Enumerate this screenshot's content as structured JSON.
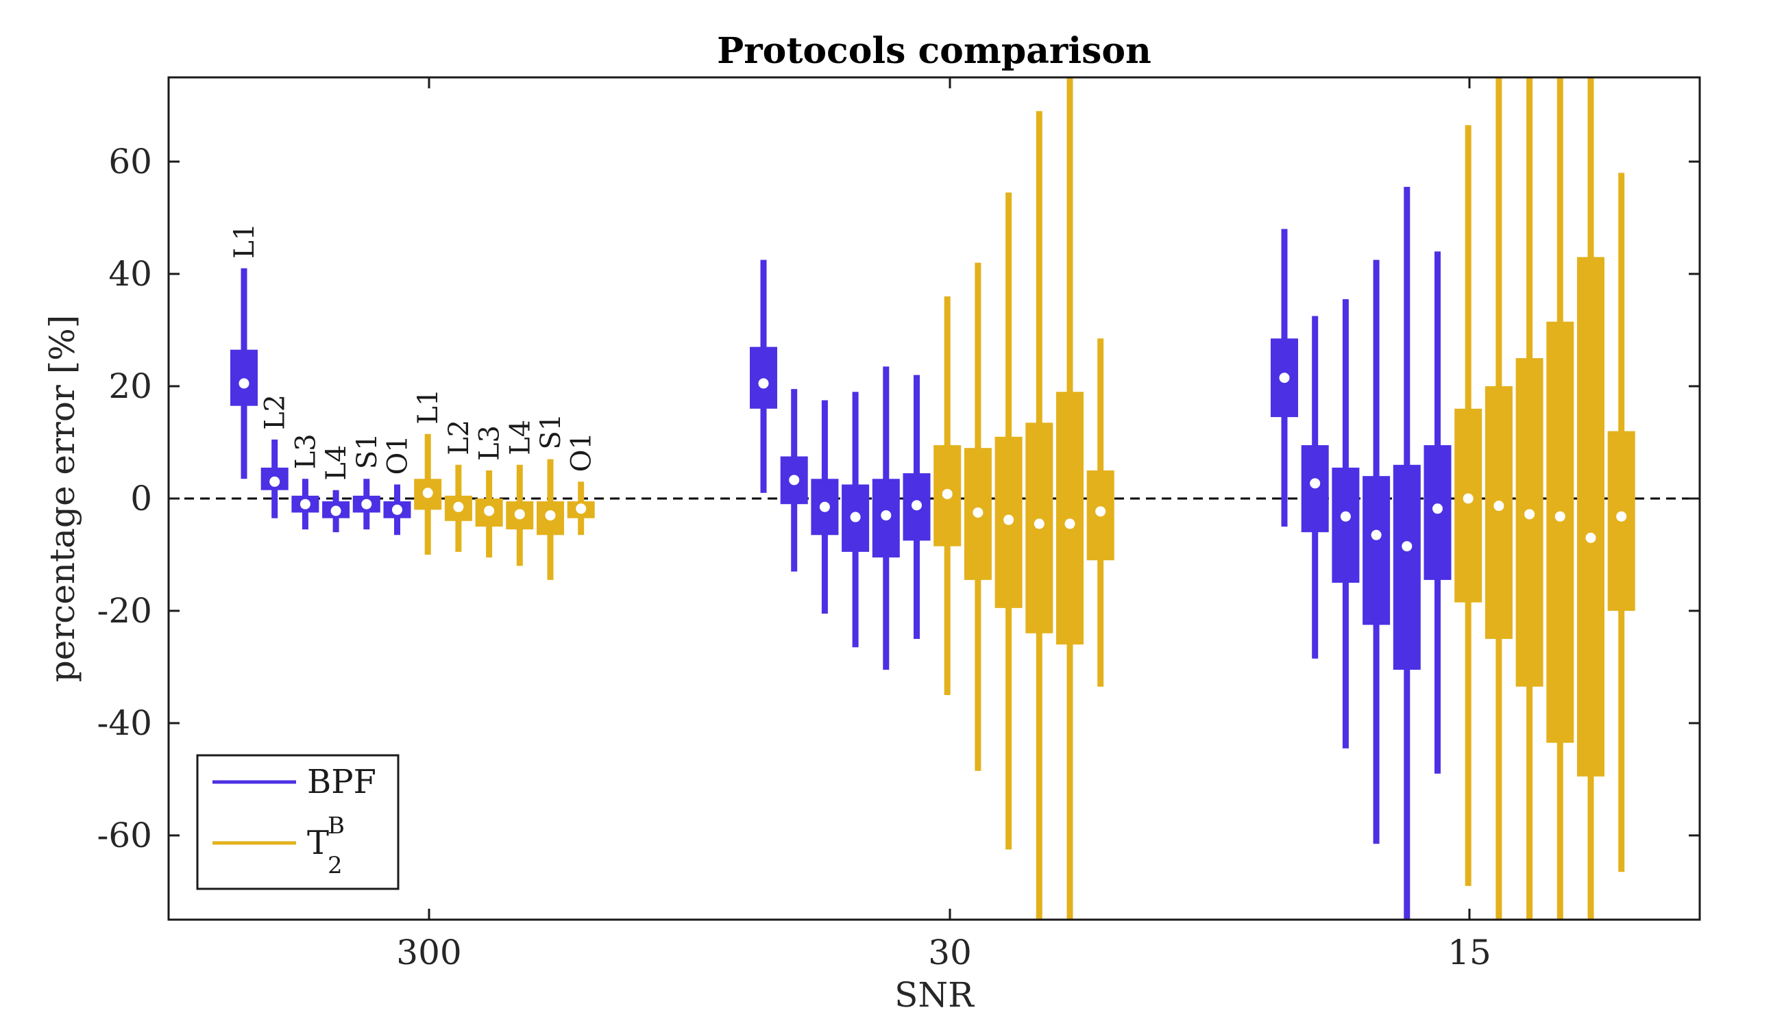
{
  "chart_data": {
    "type": "boxplot",
    "title": "Protocols comparison",
    "xlabel": "SNR",
    "ylabel": "percentage error [%]",
    "ylim": [
      -75,
      75
    ],
    "yticks": [
      -60,
      -40,
      -20,
      0,
      20,
      40,
      60
    ],
    "ytick_labels": [
      "-60",
      "-40",
      "-20",
      "0",
      "20",
      "40",
      "60"
    ],
    "xtick_labels": [
      "300",
      "30",
      "15"
    ],
    "zero_line": "dashed",
    "legend": {
      "position": "bottom-left",
      "entries": [
        {
          "label": "BPF",
          "color": "#4B30E4"
        },
        {
          "label": "T",
          "superscript": "B",
          "subscript": "2",
          "color": "#E3B11C"
        }
      ]
    },
    "colors": {
      "BPF": "#4B30E4",
      "T2B": "#E3B11C"
    },
    "protocol_labels": [
      "L1",
      "L2",
      "L3",
      "L4",
      "S1",
      "O1"
    ],
    "groups": [
      {
        "snr": "300",
        "series": [
          {
            "name": "BPF",
            "boxes": [
              {
                "label": "L1",
                "whisker_low": 3.5,
                "q1": 16.5,
                "median": 20.5,
                "q3": 26.5,
                "whisker_high": 41
              },
              {
                "label": "L2",
                "whisker_low": -3.5,
                "q1": 1.5,
                "median": 3,
                "q3": 5.5,
                "whisker_high": 10.5
              },
              {
                "label": "L3",
                "whisker_low": -5.5,
                "q1": -2.5,
                "median": -1,
                "q3": 0.5,
                "whisker_high": 3.5
              },
              {
                "label": "L4",
                "whisker_low": -6,
                "q1": -3.5,
                "median": -2.2,
                "q3": -0.5,
                "whisker_high": 1.5
              },
              {
                "label": "S1",
                "whisker_low": -5.5,
                "q1": -2.5,
                "median": -1,
                "q3": 0.5,
                "whisker_high": 3.5
              },
              {
                "label": "O1",
                "whisker_low": -6.5,
                "q1": -3.5,
                "median": -2,
                "q3": -0.5,
                "whisker_high": 2.5
              }
            ]
          },
          {
            "name": "T2B",
            "boxes": [
              {
                "label": "L1",
                "whisker_low": -10,
                "q1": -2,
                "median": 1,
                "q3": 3.5,
                "whisker_high": 11.5
              },
              {
                "label": "L2",
                "whisker_low": -9.5,
                "q1": -4,
                "median": -1.5,
                "q3": 0.5,
                "whisker_high": 6
              },
              {
                "label": "L3",
                "whisker_low": -10.5,
                "q1": -5,
                "median": -2.2,
                "q3": 0,
                "whisker_high": 5
              },
              {
                "label": "L4",
                "whisker_low": -12,
                "q1": -5.5,
                "median": -2.8,
                "q3": -0.5,
                "whisker_high": 6
              },
              {
                "label": "S1",
                "whisker_low": -14.5,
                "q1": -6.5,
                "median": -3,
                "q3": -0.5,
                "whisker_high": 7
              },
              {
                "label": "O1",
                "whisker_low": -6.5,
                "q1": -3.5,
                "median": -1.8,
                "q3": -0.5,
                "whisker_high": 3
              }
            ]
          }
        ]
      },
      {
        "snr": "30",
        "series": [
          {
            "name": "BPF",
            "boxes": [
              {
                "label": "L1",
                "whisker_low": 1,
                "q1": 16,
                "median": 20.5,
                "q3": 27,
                "whisker_high": 42.5
              },
              {
                "label": "L2",
                "whisker_low": -13,
                "q1": -1,
                "median": 3.3,
                "q3": 7.5,
                "whisker_high": 19.5
              },
              {
                "label": "L3",
                "whisker_low": -20.5,
                "q1": -6.5,
                "median": -1.5,
                "q3": 3.5,
                "whisker_high": 17.5
              },
              {
                "label": "L4",
                "whisker_low": -26.5,
                "q1": -9.5,
                "median": -3.3,
                "q3": 2.5,
                "whisker_high": 19
              },
              {
                "label": "S1",
                "whisker_low": -30.5,
                "q1": -10.5,
                "median": -3,
                "q3": 3.5,
                "whisker_high": 23.5
              },
              {
                "label": "O1",
                "whisker_low": -25,
                "q1": -7.5,
                "median": -1.2,
                "q3": 4.5,
                "whisker_high": 22
              }
            ]
          },
          {
            "name": "T2B",
            "boxes": [
              {
                "label": "L1",
                "whisker_low": -35,
                "q1": -8.5,
                "median": 0.8,
                "q3": 9.5,
                "whisker_high": 36
              },
              {
                "label": "L2",
                "whisker_low": -48.5,
                "q1": -14.5,
                "median": -2.5,
                "q3": 9,
                "whisker_high": 42
              },
              {
                "label": "L3",
                "whisker_low": -62.5,
                "q1": -19.5,
                "median": -3.8,
                "q3": 11,
                "whisker_high": 54.5
              },
              {
                "label": "L4",
                "whisker_low": -80,
                "q1": -24,
                "median": -4.5,
                "q3": 13.5,
                "whisker_high": 69
              },
              {
                "label": "S1",
                "whisker_low": -80,
                "q1": -26,
                "median": -4.5,
                "q3": 19,
                "whisker_high": 80
              },
              {
                "label": "O1",
                "whisker_low": -33.5,
                "q1": -11,
                "median": -2.3,
                "q3": 5,
                "whisker_high": 28.5
              }
            ]
          }
        ]
      },
      {
        "snr": "15",
        "series": [
          {
            "name": "BPF",
            "boxes": [
              {
                "label": "L1",
                "whisker_low": -5,
                "q1": 14.5,
                "median": 21.5,
                "q3": 28.5,
                "whisker_high": 48
              },
              {
                "label": "L2",
                "whisker_low": -28.5,
                "q1": -6,
                "median": 2.7,
                "q3": 9.5,
                "whisker_high": 32.5
              },
              {
                "label": "L3",
                "whisker_low": -44.5,
                "q1": -15,
                "median": -3.2,
                "q3": 5.5,
                "whisker_high": 35.5
              },
              {
                "label": "L4",
                "whisker_low": -61.5,
                "q1": -22.5,
                "median": -6.5,
                "q3": 4,
                "whisker_high": 42.5
              },
              {
                "label": "S1",
                "whisker_low": -80,
                "q1": -30.5,
                "median": -8.5,
                "q3": 6,
                "whisker_high": 55.5
              },
              {
                "label": "O1",
                "whisker_low": -49,
                "q1": -14.5,
                "median": -1.8,
                "q3": 9.5,
                "whisker_high": 44
              }
            ]
          },
          {
            "name": "T2B",
            "boxes": [
              {
                "label": "L1",
                "whisker_low": -69,
                "q1": -18.5,
                "median": 0,
                "q3": 16,
                "whisker_high": 66.5
              },
              {
                "label": "L2",
                "whisker_low": -80,
                "q1": -25,
                "median": -1.3,
                "q3": 20,
                "whisker_high": 80
              },
              {
                "label": "L3",
                "whisker_low": -80,
                "q1": -33.5,
                "median": -2.8,
                "q3": 25,
                "whisker_high": 80
              },
              {
                "label": "L4",
                "whisker_low": -80,
                "q1": -43.5,
                "median": -3.2,
                "q3": 31.5,
                "whisker_high": 80
              },
              {
                "label": "S1",
                "whisker_low": -80,
                "q1": -49.5,
                "median": -7,
                "q3": 43,
                "whisker_high": 80
              },
              {
                "label": "O1",
                "whisker_low": -66.5,
                "q1": -20,
                "median": -3.2,
                "q3": 12,
                "whisker_high": 58
              }
            ]
          }
        ]
      }
    ]
  }
}
